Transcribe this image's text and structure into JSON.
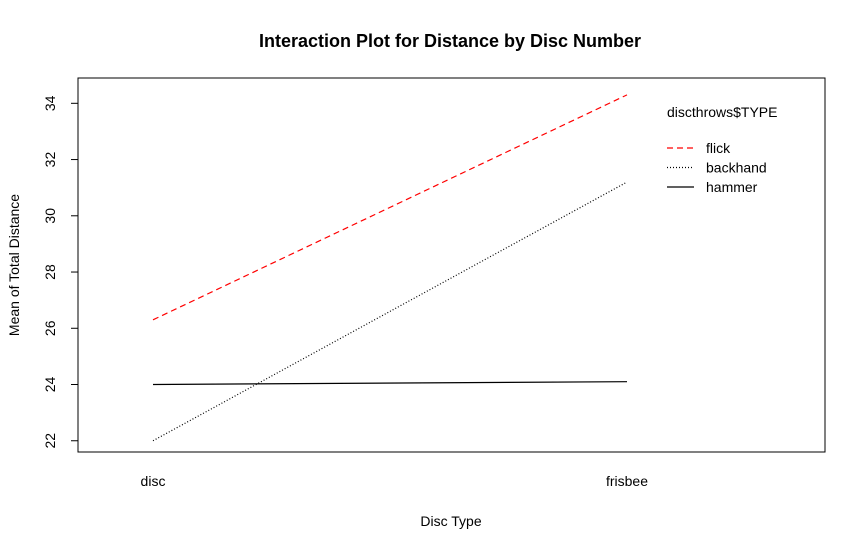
{
  "chart_data": {
    "type": "line",
    "title": "Interaction Plot for Distance by Disc Number",
    "xlabel": "Disc Type",
    "ylabel": "Mean of Total Distance",
    "categories": [
      "disc",
      "frisbee"
    ],
    "ylim": [
      21.6,
      34.9
    ],
    "yticks": [
      "22",
      "24",
      "26",
      "28",
      "30",
      "32",
      "34"
    ],
    "grid": false,
    "legend": {
      "title": "discthrows$TYPE",
      "placement": "top-right",
      "entries": [
        "flick",
        "backhand",
        "hammer"
      ]
    },
    "series": [
      {
        "name": "flick",
        "values": [
          26.3,
          34.3
        ],
        "color": "#ff0000",
        "dash": "dashed"
      },
      {
        "name": "backhand",
        "values": [
          22.0,
          31.2
        ],
        "color": "#000000",
        "dash": "dotted"
      },
      {
        "name": "hammer",
        "values": [
          24.0,
          24.1
        ],
        "color": "#000000",
        "dash": "solid"
      }
    ]
  }
}
